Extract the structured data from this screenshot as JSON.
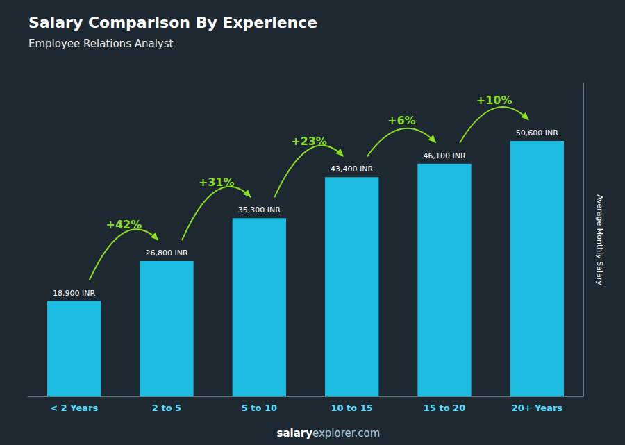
{
  "chart_data": {
    "type": "bar",
    "title": "Salary Comparison By Experience",
    "subtitle": "Employee Relations Analyst",
    "categories": [
      "< 2 Years",
      "2 to 5",
      "5 to 10",
      "10 to 15",
      "15 to 20",
      "20+ Years"
    ],
    "values": [
      18900,
      26800,
      35300,
      43400,
      46100,
      50600
    ],
    "value_labels": [
      "18,900 INR",
      "26,800 INR",
      "35,300 INR",
      "43,400 INR",
      "46,100 INR",
      "50,600 INR"
    ],
    "data_labels": true,
    "annotations": [
      "+42%",
      "+31%",
      "+23%",
      "+6%",
      "+10%"
    ],
    "ylabel": "Average Monthly Salary",
    "footer": [
      "salary",
      "explorer.com"
    ],
    "ylim": [
      0,
      62000
    ],
    "tick_labels": "x",
    "grid": false,
    "color": "#1bbcdf"
  }
}
